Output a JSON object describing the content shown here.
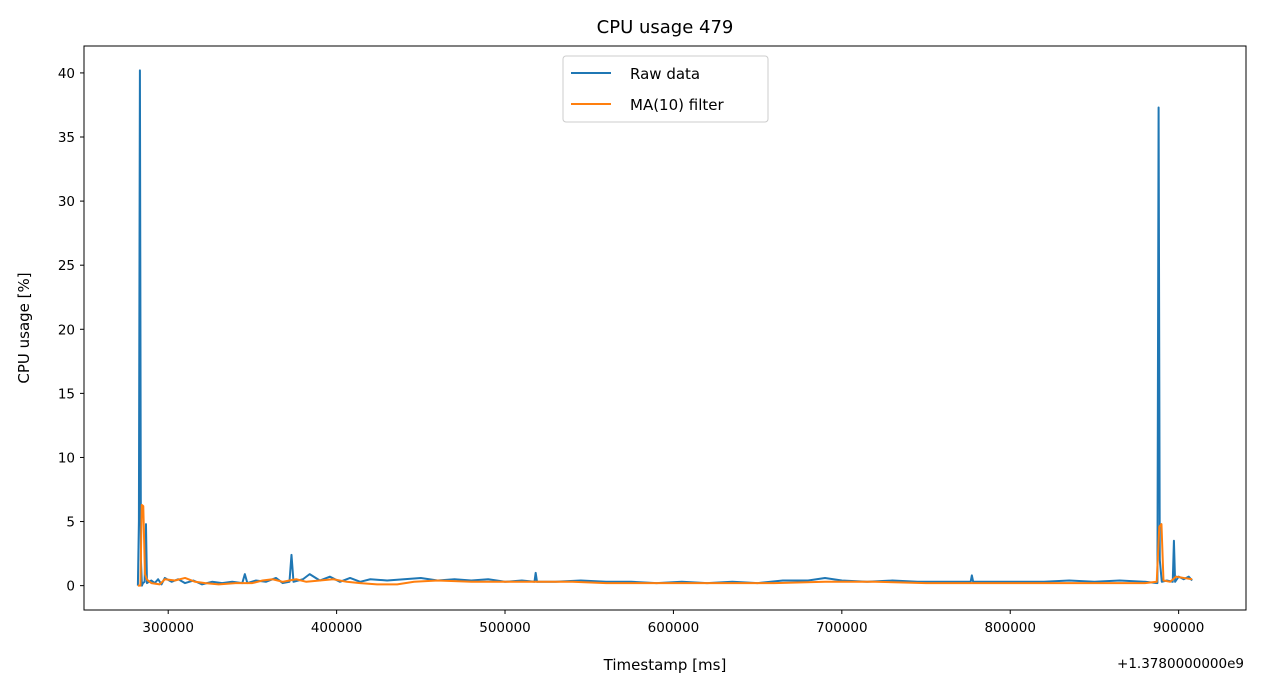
{
  "chart_data": {
    "type": "line",
    "title": "CPU usage 479",
    "xlabel": "Timestamp [ms]",
    "ylabel": "CPU usage [%]",
    "x_offset_label": "+1.3780000000e9",
    "xlim": [
      250000,
      940000
    ],
    "ylim": [
      -1.9,
      42.1
    ],
    "xticks": [
      300000,
      400000,
      500000,
      600000,
      700000,
      800000,
      900000
    ],
    "yticks": [
      0,
      5,
      10,
      15,
      20,
      25,
      30,
      35,
      40
    ],
    "grid": false,
    "legend_position": "top-center",
    "colors": {
      "raw": "#1f77b4",
      "ma": "#ff7f0e"
    },
    "series": [
      {
        "name": "Raw data",
        "points": [
          [
            282000,
            0.0
          ],
          [
            282600,
            5.0
          ],
          [
            283200,
            40.2
          ],
          [
            283800,
            2.0
          ],
          [
            284400,
            0.0
          ],
          [
            285000,
            0.2
          ],
          [
            286000,
            0.3
          ],
          [
            286800,
            4.8
          ],
          [
            287400,
            0.2
          ],
          [
            288500,
            0.3
          ],
          [
            290000,
            0.4
          ],
          [
            292000,
            0.2
          ],
          [
            294000,
            0.5
          ],
          [
            296000,
            0.1
          ],
          [
            298000,
            0.6
          ],
          [
            302000,
            0.3
          ],
          [
            306000,
            0.5
          ],
          [
            310000,
            0.2
          ],
          [
            315000,
            0.4
          ],
          [
            320000,
            0.1
          ],
          [
            326000,
            0.3
          ],
          [
            332000,
            0.2
          ],
          [
            338000,
            0.3
          ],
          [
            344000,
            0.2
          ],
          [
            345500,
            0.9
          ],
          [
            347000,
            0.2
          ],
          [
            352000,
            0.4
          ],
          [
            358000,
            0.3
          ],
          [
            364000,
            0.6
          ],
          [
            368000,
            0.2
          ],
          [
            372000,
            0.3
          ],
          [
            373200,
            2.4
          ],
          [
            374400,
            0.3
          ],
          [
            380000,
            0.5
          ],
          [
            384000,
            0.9
          ],
          [
            390000,
            0.4
          ],
          [
            396000,
            0.7
          ],
          [
            402000,
            0.3
          ],
          [
            408000,
            0.6
          ],
          [
            414000,
            0.3
          ],
          [
            420000,
            0.5
          ],
          [
            430000,
            0.4
          ],
          [
            440000,
            0.5
          ],
          [
            450000,
            0.6
          ],
          [
            460000,
            0.4
          ],
          [
            470000,
            0.5
          ],
          [
            480000,
            0.4
          ],
          [
            490000,
            0.5
          ],
          [
            500000,
            0.3
          ],
          [
            510000,
            0.4
          ],
          [
            517500,
            0.3
          ],
          [
            518200,
            1.0
          ],
          [
            519000,
            0.3
          ],
          [
            530000,
            0.3
          ],
          [
            545000,
            0.4
          ],
          [
            560000,
            0.3
          ],
          [
            575000,
            0.3
          ],
          [
            590000,
            0.2
          ],
          [
            605000,
            0.3
          ],
          [
            620000,
            0.2
          ],
          [
            635000,
            0.3
          ],
          [
            650000,
            0.2
          ],
          [
            665000,
            0.4
          ],
          [
            680000,
            0.4
          ],
          [
            690000,
            0.6
          ],
          [
            700000,
            0.4
          ],
          [
            715000,
            0.3
          ],
          [
            730000,
            0.4
          ],
          [
            745000,
            0.3
          ],
          [
            760000,
            0.3
          ],
          [
            776500,
            0.3
          ],
          [
            777200,
            0.8
          ],
          [
            778000,
            0.3
          ],
          [
            790000,
            0.3
          ],
          [
            805000,
            0.3
          ],
          [
            820000,
            0.3
          ],
          [
            835000,
            0.4
          ],
          [
            850000,
            0.3
          ],
          [
            865000,
            0.4
          ],
          [
            880000,
            0.3
          ],
          [
            887400,
            0.2
          ],
          [
            888100,
            37.3
          ],
          [
            888800,
            2.0
          ],
          [
            890000,
            0.3
          ],
          [
            893000,
            0.4
          ],
          [
            896500,
            0.3
          ],
          [
            897200,
            3.5
          ],
          [
            897900,
            0.3
          ],
          [
            900000,
            0.7
          ],
          [
            903000,
            0.5
          ],
          [
            906000,
            0.7
          ],
          [
            908000,
            0.4
          ]
        ]
      },
      {
        "name": "MA(10) filter",
        "points": [
          [
            282000,
            0.0
          ],
          [
            283500,
            0.0
          ],
          [
            284300,
            6.3
          ],
          [
            285200,
            6.2
          ],
          [
            286200,
            0.9
          ],
          [
            287200,
            0.5
          ],
          [
            288000,
            0.4
          ],
          [
            290000,
            0.2
          ],
          [
            295000,
            0.1
          ],
          [
            298000,
            0.5
          ],
          [
            304000,
            0.4
          ],
          [
            310000,
            0.6
          ],
          [
            316000,
            0.3
          ],
          [
            322000,
            0.2
          ],
          [
            330000,
            0.1
          ],
          [
            340000,
            0.2
          ],
          [
            350000,
            0.2
          ],
          [
            356000,
            0.4
          ],
          [
            362000,
            0.5
          ],
          [
            368000,
            0.3
          ],
          [
            372000,
            0.4
          ],
          [
            376000,
            0.5
          ],
          [
            382000,
            0.3
          ],
          [
            390000,
            0.4
          ],
          [
            398000,
            0.5
          ],
          [
            406000,
            0.3
          ],
          [
            414000,
            0.2
          ],
          [
            424000,
            0.1
          ],
          [
            436000,
            0.1
          ],
          [
            446000,
            0.3
          ],
          [
            460000,
            0.4
          ],
          [
            480000,
            0.3
          ],
          [
            500000,
            0.3
          ],
          [
            520000,
            0.3
          ],
          [
            540000,
            0.3
          ],
          [
            560000,
            0.2
          ],
          [
            580000,
            0.2
          ],
          [
            600000,
            0.2
          ],
          [
            630000,
            0.2
          ],
          [
            660000,
            0.2
          ],
          [
            690000,
            0.3
          ],
          [
            720000,
            0.3
          ],
          [
            750000,
            0.2
          ],
          [
            780000,
            0.2
          ],
          [
            810000,
            0.2
          ],
          [
            840000,
            0.2
          ],
          [
            860000,
            0.2
          ],
          [
            880000,
            0.2
          ],
          [
            887000,
            0.3
          ],
          [
            888500,
            4.6
          ],
          [
            889800,
            4.8
          ],
          [
            891000,
            0.4
          ],
          [
            895000,
            0.3
          ],
          [
            898500,
            0.7
          ],
          [
            903000,
            0.6
          ],
          [
            908000,
            0.5
          ]
        ]
      }
    ]
  }
}
